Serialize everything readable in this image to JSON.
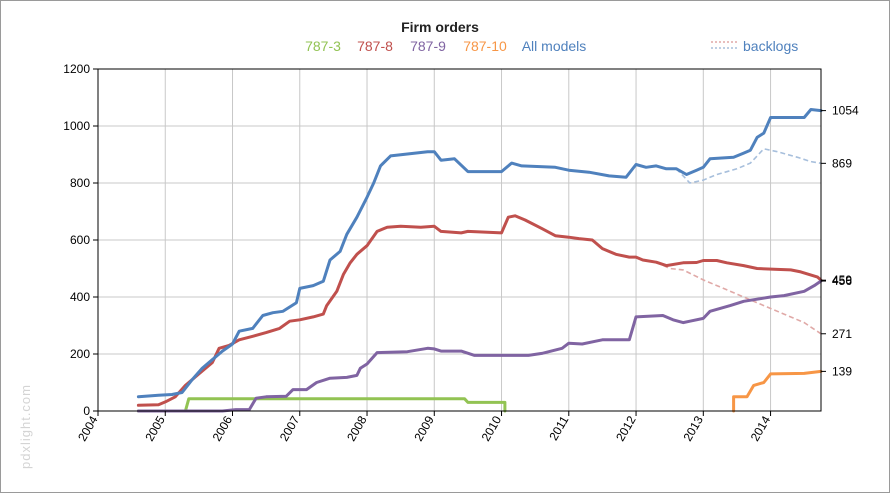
{
  "watermark": "pdxlight.com",
  "chart_data": {
    "type": "line",
    "title": "Firm orders",
    "xlabel": "",
    "ylabel": "",
    "x_ticks": [
      "2004",
      "2005",
      "2006",
      "2007",
      "2008",
      "2009",
      "2010",
      "2011",
      "2012",
      "2013",
      "2014"
    ],
    "y_ticks": [
      0,
      200,
      400,
      600,
      800,
      1000,
      1200
    ],
    "xlim": [
      2004.0,
      2014.75
    ],
    "ylim": [
      0,
      1200
    ],
    "grid": true,
    "legend": {
      "placement": "top",
      "backlogs_label": "backlogs"
    },
    "end_labels": [
      {
        "text": "1054",
        "value": 1054
      },
      {
        "text": "869",
        "value": 869
      },
      {
        "text": "459",
        "value": 459
      },
      {
        "text": "456",
        "value": 456
      },
      {
        "text": "271",
        "value": 271
      },
      {
        "text": "139",
        "value": 139
      }
    ],
    "series": [
      {
        "name": "787-3",
        "color": "#92c353",
        "points": [
          [
            2004.6,
            0
          ],
          [
            2005.3,
            0
          ],
          [
            2005.35,
            43
          ],
          [
            2009.45,
            43
          ],
          [
            2009.5,
            30
          ],
          [
            2010.05,
            30
          ],
          [
            2010.05,
            0
          ]
        ]
      },
      {
        "name": "787-8",
        "color": "#c0504d",
        "points": [
          [
            2004.6,
            20
          ],
          [
            2004.9,
            22
          ],
          [
            2005.0,
            32
          ],
          [
            2005.15,
            50
          ],
          [
            2005.3,
            90
          ],
          [
            2005.5,
            130
          ],
          [
            2005.7,
            170
          ],
          [
            2005.8,
            220
          ],
          [
            2005.95,
            230
          ],
          [
            2006.1,
            250
          ],
          [
            2006.3,
            262
          ],
          [
            2006.5,
            275
          ],
          [
            2006.7,
            290
          ],
          [
            2006.85,
            315
          ],
          [
            2007.0,
            320
          ],
          [
            2007.2,
            330
          ],
          [
            2007.35,
            340
          ],
          [
            2007.4,
            370
          ],
          [
            2007.55,
            420
          ],
          [
            2007.65,
            480
          ],
          [
            2007.75,
            520
          ],
          [
            2007.85,
            550
          ],
          [
            2008.0,
            580
          ],
          [
            2008.15,
            630
          ],
          [
            2008.3,
            645
          ],
          [
            2008.5,
            648
          ],
          [
            2008.8,
            645
          ],
          [
            2009.0,
            648
          ],
          [
            2009.1,
            630
          ],
          [
            2009.4,
            625
          ],
          [
            2009.5,
            630
          ],
          [
            2010.0,
            625
          ],
          [
            2010.1,
            680
          ],
          [
            2010.2,
            685
          ],
          [
            2010.35,
            670
          ],
          [
            2010.6,
            640
          ],
          [
            2010.8,
            615
          ],
          [
            2011.0,
            610
          ],
          [
            2011.15,
            605
          ],
          [
            2011.35,
            600
          ],
          [
            2011.5,
            570
          ],
          [
            2011.7,
            550
          ],
          [
            2011.9,
            540
          ],
          [
            2012.0,
            540
          ],
          [
            2012.1,
            530
          ],
          [
            2012.3,
            522
          ],
          [
            2012.45,
            510
          ],
          [
            2012.7,
            520
          ],
          [
            2012.9,
            521
          ],
          [
            2013.0,
            528
          ],
          [
            2013.2,
            528
          ],
          [
            2013.35,
            520
          ],
          [
            2013.6,
            510
          ],
          [
            2013.8,
            500
          ],
          [
            2014.1,
            497
          ],
          [
            2014.3,
            495
          ],
          [
            2014.45,
            488
          ],
          [
            2014.7,
            470
          ],
          [
            2014.75,
            459
          ]
        ]
      },
      {
        "name": "787-9",
        "color": "#8064a2",
        "points": [
          [
            2004.6,
            0
          ],
          [
            2005.85,
            0
          ],
          [
            2006.05,
            5
          ],
          [
            2006.25,
            5
          ],
          [
            2006.35,
            45
          ],
          [
            2006.5,
            50
          ],
          [
            2006.8,
            52
          ],
          [
            2006.9,
            75
          ],
          [
            2007.1,
            75
          ],
          [
            2007.25,
            100
          ],
          [
            2007.45,
            115
          ],
          [
            2007.7,
            118
          ],
          [
            2007.85,
            125
          ],
          [
            2007.9,
            150
          ],
          [
            2008.0,
            165
          ],
          [
            2008.15,
            205
          ],
          [
            2008.6,
            208
          ],
          [
            2008.9,
            220
          ],
          [
            2009.0,
            218
          ],
          [
            2009.1,
            210
          ],
          [
            2009.4,
            210
          ],
          [
            2009.6,
            195
          ],
          [
            2010.4,
            195
          ],
          [
            2010.6,
            202
          ],
          [
            2010.9,
            220
          ],
          [
            2011.0,
            238
          ],
          [
            2011.2,
            235
          ],
          [
            2011.4,
            245
          ],
          [
            2011.5,
            250
          ],
          [
            2011.9,
            250
          ],
          [
            2012.0,
            330
          ],
          [
            2012.4,
            335
          ],
          [
            2012.55,
            320
          ],
          [
            2012.7,
            310
          ],
          [
            2012.8,
            315
          ],
          [
            2013.0,
            325
          ],
          [
            2013.1,
            350
          ],
          [
            2013.4,
            370
          ],
          [
            2013.6,
            385
          ],
          [
            2014.0,
            400
          ],
          [
            2014.2,
            405
          ],
          [
            2014.5,
            420
          ],
          [
            2014.65,
            440
          ],
          [
            2014.75,
            456
          ]
        ]
      },
      {
        "name": "787-10",
        "color": "#f79646",
        "points": [
          [
            2013.45,
            0
          ],
          [
            2013.45,
            50
          ],
          [
            2013.65,
            50
          ],
          [
            2013.75,
            90
          ],
          [
            2013.9,
            100
          ],
          [
            2014.0,
            130
          ],
          [
            2014.5,
            132
          ],
          [
            2014.75,
            139
          ]
        ]
      },
      {
        "name": "All models",
        "color": "#4f81bd",
        "points": [
          [
            2004.6,
            50
          ],
          [
            2004.9,
            55
          ],
          [
            2005.1,
            58
          ],
          [
            2005.25,
            65
          ],
          [
            2005.4,
            110
          ],
          [
            2005.55,
            150
          ],
          [
            2005.7,
            180
          ],
          [
            2005.85,
            210
          ],
          [
            2006.0,
            235
          ],
          [
            2006.1,
            280
          ],
          [
            2006.3,
            290
          ],
          [
            2006.45,
            335
          ],
          [
            2006.6,
            345
          ],
          [
            2006.75,
            350
          ],
          [
            2006.95,
            380
          ],
          [
            2007.0,
            430
          ],
          [
            2007.2,
            440
          ],
          [
            2007.35,
            455
          ],
          [
            2007.45,
            530
          ],
          [
            2007.6,
            560
          ],
          [
            2007.7,
            620
          ],
          [
            2007.85,
            680
          ],
          [
            2008.0,
            750
          ],
          [
            2008.1,
            800
          ],
          [
            2008.2,
            860
          ],
          [
            2008.35,
            895
          ],
          [
            2008.9,
            910
          ],
          [
            2009.0,
            910
          ],
          [
            2009.1,
            880
          ],
          [
            2009.3,
            885
          ],
          [
            2009.5,
            840
          ],
          [
            2010.0,
            840
          ],
          [
            2010.15,
            870
          ],
          [
            2010.3,
            860
          ],
          [
            2010.8,
            855
          ],
          [
            2011.0,
            845
          ],
          [
            2011.3,
            838
          ],
          [
            2011.6,
            825
          ],
          [
            2011.85,
            820
          ],
          [
            2012.0,
            865
          ],
          [
            2012.15,
            855
          ],
          [
            2012.3,
            860
          ],
          [
            2012.45,
            850
          ],
          [
            2012.6,
            850
          ],
          [
            2012.75,
            830
          ],
          [
            2012.9,
            845
          ],
          [
            2013.0,
            855
          ],
          [
            2013.1,
            885
          ],
          [
            2013.45,
            890
          ],
          [
            2013.6,
            905
          ],
          [
            2013.7,
            915
          ],
          [
            2013.8,
            960
          ],
          [
            2013.9,
            975
          ],
          [
            2014.0,
            1030
          ],
          [
            2014.5,
            1030
          ],
          [
            2014.6,
            1058
          ],
          [
            2014.75,
            1054
          ]
        ]
      }
    ],
    "backlog_series": [
      {
        "name": "787-8 backlog",
        "color": "#e0a9a7",
        "points": [
          [
            2012.3,
            522
          ],
          [
            2012.5,
            500
          ],
          [
            2012.7,
            495
          ],
          [
            2013.0,
            460
          ],
          [
            2013.3,
            430
          ],
          [
            2013.6,
            400
          ],
          [
            2013.9,
            370
          ],
          [
            2014.2,
            340
          ],
          [
            2014.5,
            310
          ],
          [
            2014.75,
            271
          ]
        ]
      },
      {
        "name": "All models backlog",
        "color": "#a7bfdc",
        "points": [
          [
            2012.6,
            850
          ],
          [
            2012.8,
            800
          ],
          [
            2013.0,
            810
          ],
          [
            2013.2,
            830
          ],
          [
            2013.5,
            850
          ],
          [
            2013.7,
            870
          ],
          [
            2013.9,
            920
          ],
          [
            2014.1,
            910
          ],
          [
            2014.4,
            890
          ],
          [
            2014.6,
            875
          ],
          [
            2014.75,
            869
          ]
        ]
      }
    ]
  }
}
